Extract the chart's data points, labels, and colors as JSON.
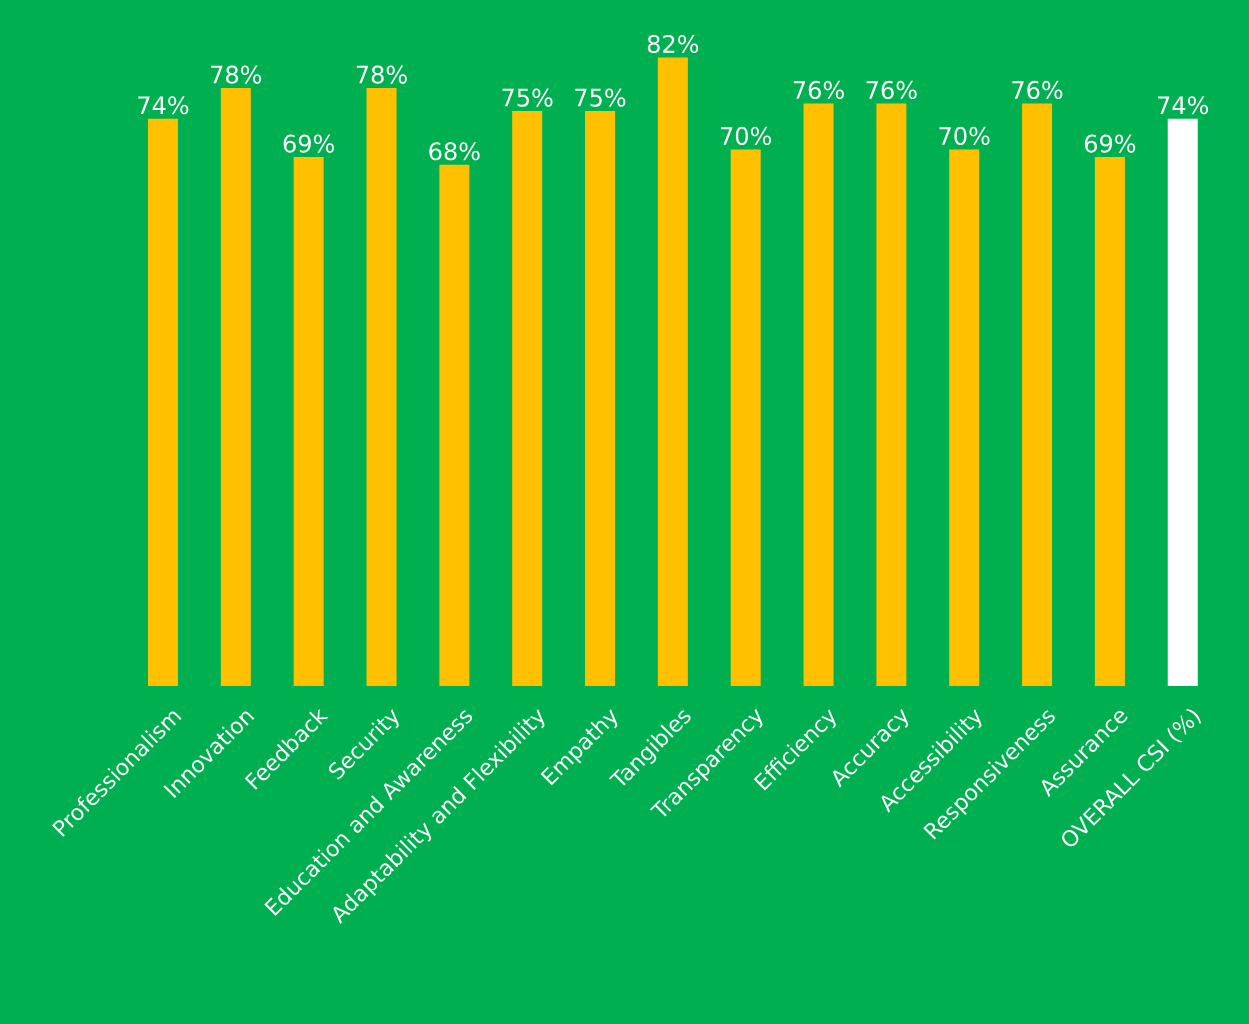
{
  "chart_data": {
    "type": "bar",
    "categories": [
      "Professionalism",
      "Innovation",
      "Feedback",
      "Security",
      "Education and Awareness",
      "Adaptability and Flexibility",
      "Empathy",
      "Tangibles",
      "Transparency",
      "Efficiency",
      "Accuracy",
      "Accessibility",
      "Responsiveness",
      "Assurance",
      "OVERALL CSI (%)"
    ],
    "values": [
      74,
      78,
      69,
      78,
      68,
      75,
      75,
      82,
      70,
      76,
      76,
      70,
      76,
      69,
      74
    ],
    "value_labels": [
      "74%",
      "78%",
      "69%",
      "78%",
      "68%",
      "75%",
      "75%",
      "82%",
      "70%",
      "76%",
      "76%",
      "70%",
      "76%",
      "69%",
      "74%"
    ],
    "colors": [
      "#ffc000",
      "#ffc000",
      "#ffc000",
      "#ffc000",
      "#ffc000",
      "#ffc000",
      "#ffc000",
      "#ffc000",
      "#ffc000",
      "#ffc000",
      "#ffc000",
      "#ffc000",
      "#ffc000",
      "#ffc000",
      "#ffffff"
    ]
  }
}
